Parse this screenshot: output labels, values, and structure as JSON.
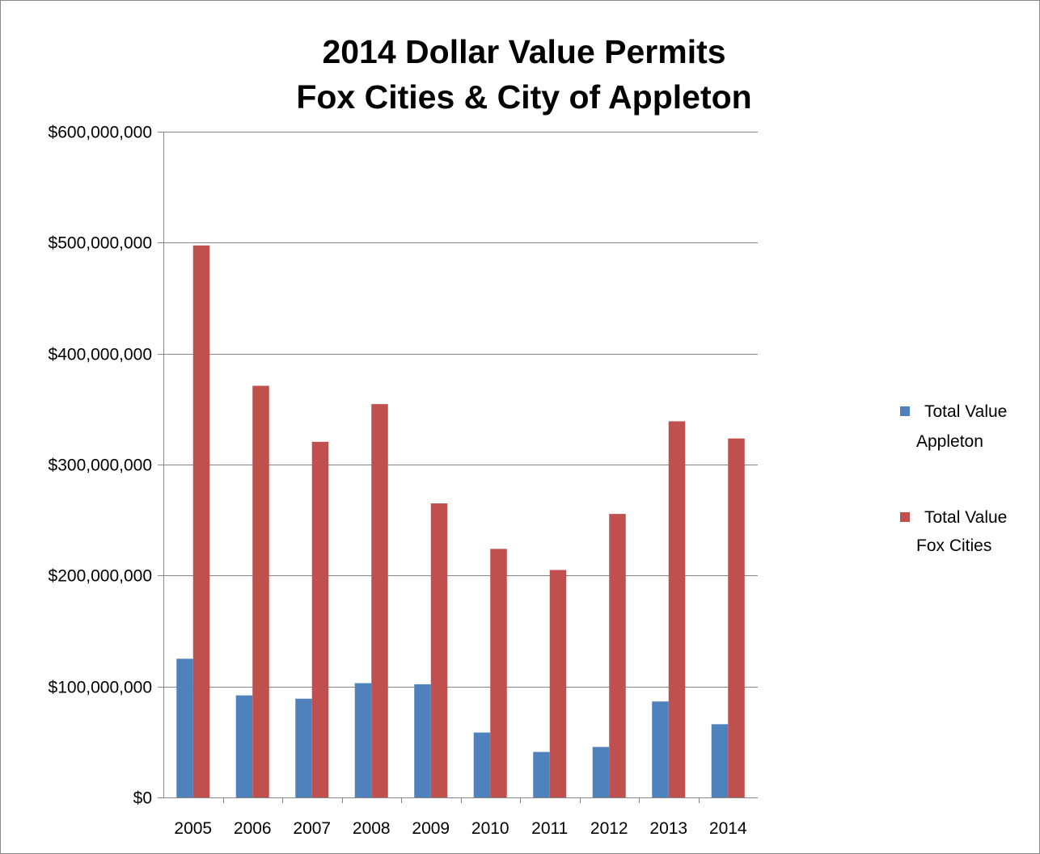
{
  "chart_data": {
    "type": "bar",
    "title_lines": [
      "2014 Dollar Value Permits",
      "Fox Cities & City of Appleton"
    ],
    "xlabel": "",
    "ylabel": "",
    "categories": [
      "2005",
      "2006",
      "2007",
      "2008",
      "2009",
      "2010",
      "2011",
      "2012",
      "2013",
      "2014"
    ],
    "series": [
      {
        "name": "Total Value Appleton",
        "legend_lines": [
          "Total Value",
          "Appleton"
        ],
        "color": "#4F81BD",
        "values": [
          125000000,
          92000000,
          89000000,
          103000000,
          102000000,
          58500000,
          41000000,
          45500000,
          86500000,
          66000000
        ]
      },
      {
        "name": "Total Value Fox Cities",
        "legend_lines": [
          "Total Value",
          "Fox Cities"
        ],
        "color": "#C0504D",
        "values": [
          497500000,
          371000000,
          320500000,
          354500000,
          265000000,
          224000000,
          205000000,
          255500000,
          339000000,
          323500000
        ]
      }
    ],
    "ylim": [
      0,
      600000000
    ],
    "y_ticks": [
      0,
      100000000,
      200000000,
      300000000,
      400000000,
      500000000,
      600000000
    ],
    "y_tick_labels": [
      "$0",
      "$100,000,000",
      "$200,000,000",
      "$300,000,000",
      "$400,000,000",
      "$500,000,000",
      "$600,000,000"
    ],
    "grid": true,
    "legend_position": "right"
  },
  "colors": {
    "grid": "#868686",
    "axis": "#868686"
  }
}
